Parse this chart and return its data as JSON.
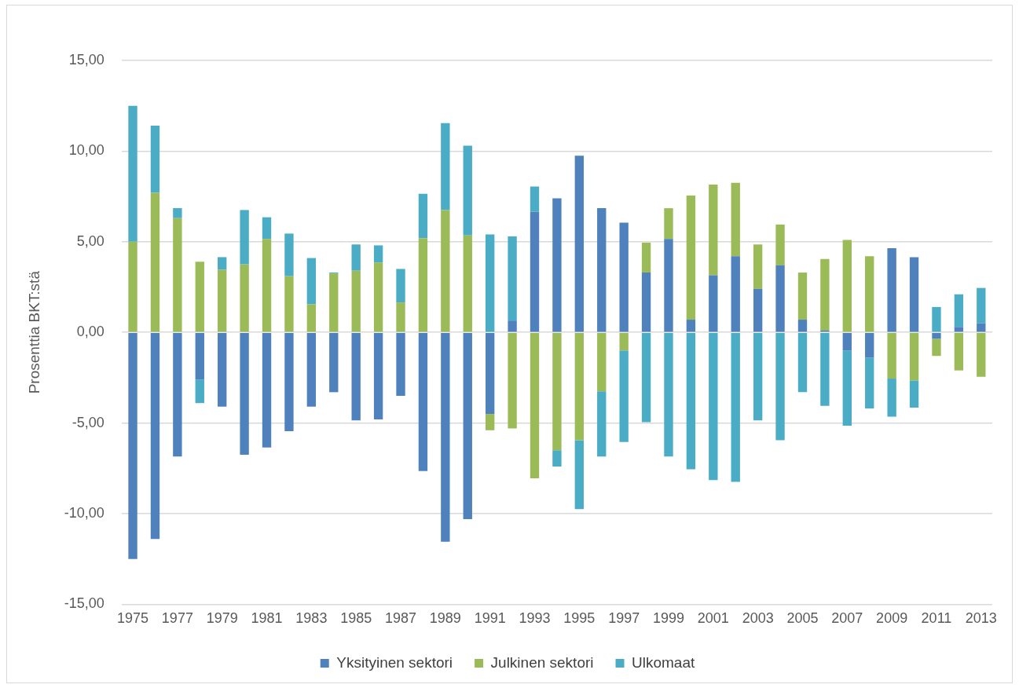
{
  "chart_data": {
    "type": "bar",
    "stacked": true,
    "ylabel": "Prosenttia BKT:stä",
    "categories": [
      "1975",
      null,
      "1977",
      null,
      "1979",
      null,
      "1981",
      null,
      "1983",
      null,
      "1985",
      null,
      "1987",
      null,
      "1989",
      null,
      "1991",
      null,
      "1993",
      null,
      "1995",
      null,
      "1997",
      null,
      "1999",
      null,
      "2001",
      null,
      "2003",
      null,
      "2005",
      null,
      "2007",
      null,
      "2009",
      null,
      "2011",
      null,
      "2013"
    ],
    "series": [
      {
        "name": "Yksityinen sektori",
        "color": "#4f81bd",
        "values": [
          -12.5,
          -11.4,
          -6.85,
          -2.6,
          -4.1,
          -6.75,
          -6.35,
          -5.45,
          -4.1,
          -3.3,
          -4.85,
          -4.8,
          -3.5,
          -7.65,
          -11.55,
          -10.3,
          -4.5,
          0.65,
          6.65,
          7.4,
          9.75,
          6.85,
          6.05,
          3.3,
          5.15,
          0.7,
          3.15,
          4.2,
          2.4,
          3.7,
          0.7,
          0.1,
          -1.0,
          -1.4,
          4.65,
          4.15,
          -0.35,
          0.3,
          0.5
        ]
      },
      {
        "name": "Julkinen sektori",
        "color": "#9bbb59",
        "values": [
          5.0,
          7.7,
          6.3,
          3.9,
          3.45,
          3.75,
          5.15,
          3.1,
          1.55,
          3.25,
          3.4,
          3.85,
          1.65,
          5.2,
          6.75,
          5.35,
          -0.9,
          -5.3,
          -8.05,
          -6.5,
          -5.95,
          -3.25,
          -1.0,
          1.65,
          1.7,
          6.85,
          5.0,
          4.05,
          2.45,
          2.25,
          2.6,
          3.95,
          5.1,
          4.2,
          -2.55,
          -2.65,
          -0.95,
          -2.1,
          -2.45
        ]
      },
      {
        "name": "Ulkomaat",
        "color": "#4bacc6",
        "values": [
          7.5,
          3.7,
          0.55,
          -1.3,
          0.7,
          3.0,
          1.2,
          2.35,
          2.55,
          0.05,
          1.45,
          0.95,
          1.85,
          2.45,
          4.8,
          4.95,
          5.4,
          4.65,
          1.4,
          -0.9,
          -3.8,
          -3.6,
          -5.05,
          -4.95,
          -6.85,
          -7.55,
          -8.15,
          -8.25,
          -4.85,
          -5.95,
          -3.3,
          -4.05,
          -4.15,
          -2.8,
          -2.1,
          -1.5,
          1.4,
          1.8,
          1.95
        ]
      }
    ],
    "ylim": [
      -15,
      15
    ],
    "yticks": [
      {
        "value": -15,
        "label": "-15,00"
      },
      {
        "value": -10,
        "label": "-10,00"
      },
      {
        "value": -5,
        "label": "-5,00"
      },
      {
        "value": 0,
        "label": "0,00"
      },
      {
        "value": 5,
        "label": "5,00"
      },
      {
        "value": 10,
        "label": "10,00"
      },
      {
        "value": 15,
        "label": "15,00"
      }
    ],
    "grid": "y",
    "legend": "bottom"
  }
}
